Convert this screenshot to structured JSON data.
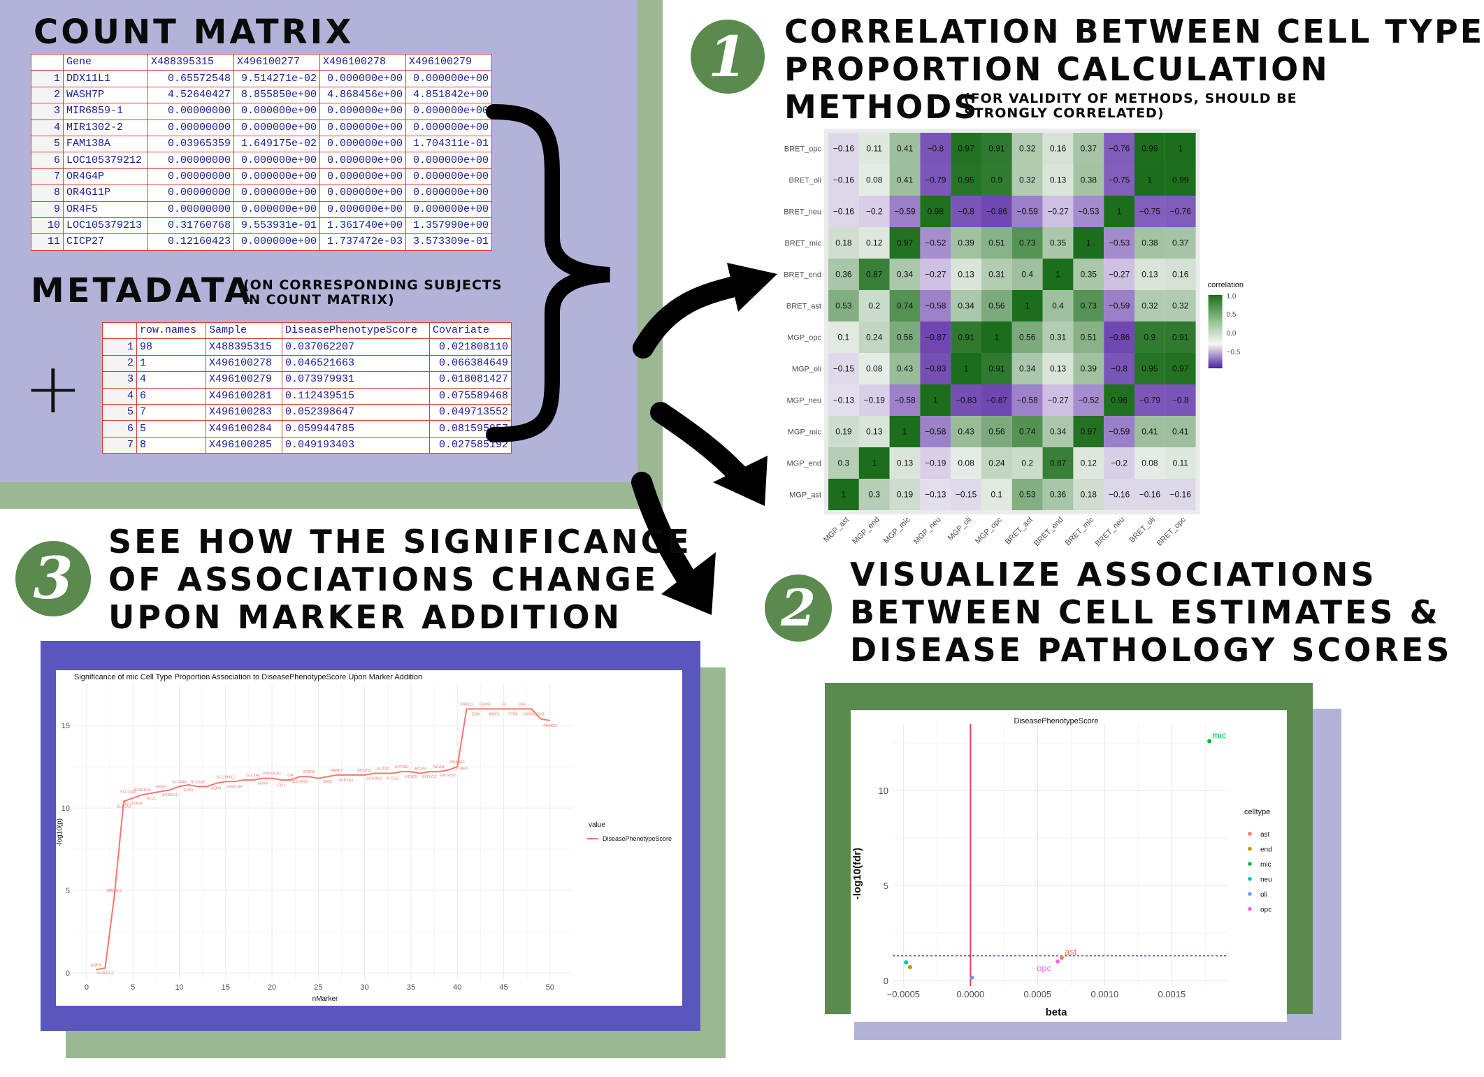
{
  "count_matrix": {
    "title": "COUNT MATRIX",
    "columns": [
      "",
      "Gene",
      "X488395315",
      "X496100277",
      "X496100278",
      "X496100279"
    ],
    "rows": [
      [
        "1",
        "DDX11L1",
        "0.65572548",
        "9.514271e-02",
        "0.000000e+00",
        "0.000000e+00"
      ],
      [
        "2",
        "WASH7P",
        "4.52640427",
        "8.855850e+00",
        "4.868456e+00",
        "4.851842e+00"
      ],
      [
        "3",
        "MIR6859-1",
        "0.00000000",
        "0.000000e+00",
        "0.000000e+00",
        "0.000000e+00"
      ],
      [
        "4",
        "MIR1302-2",
        "0.00000000",
        "0.000000e+00",
        "0.000000e+00",
        "0.000000e+00"
      ],
      [
        "5",
        "FAM138A",
        "0.03965359",
        "1.649175e-02",
        "0.000000e+00",
        "1.704311e-01"
      ],
      [
        "6",
        "LOC105379212",
        "0.00000000",
        "0.000000e+00",
        "0.000000e+00",
        "0.000000e+00"
      ],
      [
        "7",
        "OR4G4P",
        "0.00000000",
        "0.000000e+00",
        "0.000000e+00",
        "0.000000e+00"
      ],
      [
        "8",
        "OR4G11P",
        "0.00000000",
        "0.000000e+00",
        "0.000000e+00",
        "0.000000e+00"
      ],
      [
        "9",
        "OR4F5",
        "0.00000000",
        "0.000000e+00",
        "0.000000e+00",
        "0.000000e+00"
      ],
      [
        "10",
        "LOC105379213",
        "0.31760768",
        "9.553931e-01",
        "1.361740e+00",
        "1.357990e+00"
      ],
      [
        "11",
        "CICP27",
        "0.12160423",
        "0.000000e+00",
        "1.737472e-03",
        "3.573309e-01"
      ]
    ]
  },
  "metadata": {
    "title": "METADATA",
    "note": "(ON CORRESPONDING SUBJECTS IN COUNT MATRIX)",
    "plus": "+",
    "columns": [
      "",
      "row.names",
      "Sample",
      "DiseasePhenotypeScore",
      "Covariate"
    ],
    "rows": [
      [
        "1",
        "98",
        "X488395315",
        "0.037062207",
        "0.021808110"
      ],
      [
        "2",
        "1",
        "X496100278",
        "0.046521663",
        "0.066384649"
      ],
      [
        "3",
        "4",
        "X496100279",
        "0.073979931",
        "0.018081427"
      ],
      [
        "4",
        "6",
        "X496100281",
        "0.112439515",
        "0.075589468"
      ],
      [
        "5",
        "7",
        "X496100283",
        "0.052398647",
        "0.049713552"
      ],
      [
        "6",
        "5",
        "X496100284",
        "0.059944785",
        "0.081595957"
      ],
      [
        "7",
        "8",
        "X496100285",
        "0.049193403",
        "0.027585192"
      ]
    ]
  },
  "step1": {
    "number": "1",
    "title_line1": "CORRELATION BETWEEN CELL TYPE",
    "title_line2": "PROPORTION CALCULATION",
    "title_line3": "METHODS",
    "note": "(FOR VALIDITY OF METHODS, SHOULD BE STRONGLY CORRELATED)"
  },
  "step2": {
    "number": "2",
    "title_line1": "VISUALIZE ASSOCIATIONS",
    "title_line2": "BETWEEN CELL ESTIMATES &",
    "title_line3": "DISEASE PATHOLOGY SCORES"
  },
  "step3": {
    "number": "3",
    "title_line1": "SEE HOW THE SIGNIFICANCE",
    "title_line2": "OF ASSOCIATIONS CHANGE",
    "title_line3": "UPON MARKER ADDITION"
  },
  "colors": {
    "lavender": "#b3b3d9",
    "sage": "#9cb893",
    "green_box": "#5a8a4e",
    "blue_box": "#5957bd",
    "heat_high": "#1b6e1b",
    "heat_low": "#5b2ca8"
  },
  "chart_data": [
    {
      "type": "heatmap",
      "legend_title": "correlation",
      "legend_ticks": [
        "1.0",
        "0.5",
        "0.0",
        "-0.5"
      ],
      "x_labels": [
        "MGP_ast",
        "MGP_end",
        "MGP_mic",
        "MGP_neu",
        "MGP_oli",
        "MGP_opc",
        "BRET_ast",
        "BRET_end",
        "BRET_mic",
        "BRET_neu",
        "BRET_oli",
        "BRET_opc"
      ],
      "y_labels": [
        "BRET_opc",
        "BRET_oli",
        "BRET_neu",
        "BRET_mic",
        "BRET_end",
        "BRET_ast",
        "MGP_opc",
        "MGP_oli",
        "MGP_neu",
        "MGP_mic",
        "MGP_end",
        "MGP_ast"
      ],
      "values": [
        [
          -0.16,
          0.11,
          0.41,
          -0.8,
          0.97,
          0.91,
          0.32,
          0.16,
          0.37,
          -0.76,
          0.99,
          1
        ],
        [
          -0.16,
          0.08,
          0.41,
          -0.79,
          0.95,
          0.9,
          0.32,
          0.13,
          0.38,
          -0.75,
          1,
          0.99
        ],
        [
          -0.16,
          -0.2,
          -0.59,
          0.98,
          -0.8,
          -0.86,
          -0.59,
          -0.27,
          -0.53,
          1,
          -0.75,
          -0.76
        ],
        [
          0.18,
          0.12,
          0.97,
          -0.52,
          0.39,
          0.51,
          0.73,
          0.35,
          1,
          -0.53,
          0.38,
          0.37
        ],
        [
          0.36,
          0.87,
          0.34,
          -0.27,
          0.13,
          0.31,
          0.4,
          1,
          0.35,
          -0.27,
          0.13,
          0.16
        ],
        [
          0.53,
          0.2,
          0.74,
          -0.58,
          0.34,
          0.56,
          1,
          0.4,
          0.73,
          -0.59,
          0.32,
          0.32
        ],
        [
          0.1,
          0.24,
          0.56,
          -0.87,
          0.91,
          1,
          0.56,
          0.31,
          0.51,
          -0.86,
          0.9,
          0.91
        ],
        [
          -0.15,
          0.08,
          0.43,
          -0.83,
          1,
          0.91,
          0.34,
          0.13,
          0.39,
          -0.8,
          0.95,
          0.97
        ],
        [
          -0.13,
          -0.19,
          -0.58,
          1,
          -0.83,
          -0.87,
          -0.58,
          -0.27,
          -0.52,
          0.98,
          -0.79,
          -0.8
        ],
        [
          0.19,
          0.13,
          1,
          -0.58,
          0.43,
          0.56,
          0.74,
          0.34,
          0.97,
          -0.59,
          0.41,
          0.41
        ],
        [
          0.3,
          1,
          0.13,
          -0.19,
          0.08,
          0.24,
          0.2,
          0.87,
          0.12,
          -0.2,
          0.08,
          0.11
        ],
        [
          1,
          0.3,
          0.19,
          -0.13,
          -0.15,
          0.1,
          0.53,
          0.36,
          0.18,
          -0.16,
          -0.16,
          -0.16
        ]
      ]
    },
    {
      "type": "scatter",
      "title": "DiseasePhenotypeScore",
      "xlabel": "beta",
      "ylabel": "-log10(fdr)",
      "xlim": [
        -0.00058,
        0.00192
      ],
      "ylim": [
        -0.3,
        13.5
      ],
      "x_ticks": [
        "-0.0005",
        "0.0000",
        "0.0005",
        "0.0010",
        "0.0015"
      ],
      "x_tick_values": [
        -0.0005,
        0,
        0.0005,
        0.001,
        0.0015
      ],
      "y_ticks": [
        "0",
        "5",
        "10"
      ],
      "y_tick_values": [
        0,
        5,
        10
      ],
      "vline": 0,
      "hline": 1.3,
      "legend_title": "celltype",
      "points": [
        {
          "celltype": "ast",
          "x": 0.00068,
          "y": 1.2,
          "color": "#f8766d",
          "label": "ast"
        },
        {
          "celltype": "end",
          "x": -0.00045,
          "y": 0.7,
          "color": "#b79f00",
          "label": ""
        },
        {
          "celltype": "mic",
          "x": 0.00178,
          "y": 12.6,
          "color": "#00ba38",
          "label": "mic"
        },
        {
          "celltype": "neu",
          "x": -0.00048,
          "y": 0.95,
          "color": "#00bfc4",
          "label": ""
        },
        {
          "celltype": "oli",
          "x": 1e-05,
          "y": 0.15,
          "color": "#619cff",
          "label": ""
        },
        {
          "celltype": "opc",
          "x": 0.00065,
          "y": 1.0,
          "color": "#f564e3",
          "label": "opc"
        }
      ]
    },
    {
      "type": "line",
      "title": "Significance of mic Cell Type Proportion Association to DiseasePhenotypeScore Upon Marker Addition",
      "xlabel": "nMarker",
      "ylabel": "-log10(p)",
      "xlim": [
        -1.5,
        52.5
      ],
      "ylim": [
        -0.5,
        17.5
      ],
      "x_ticks": [
        "0",
        "5",
        "10",
        "15",
        "20",
        "25",
        "30",
        "35",
        "40",
        "45",
        "50"
      ],
      "x_tick_values": [
        0,
        5,
        10,
        15,
        20,
        25,
        30,
        35,
        40,
        45,
        50
      ],
      "y_ticks": [
        "0",
        "5",
        "10",
        "15"
      ],
      "y_tick_values": [
        0,
        5,
        10,
        15
      ],
      "legend_title": "value",
      "series": [
        {
          "name": "DiseasePhenotypeScore",
          "color": "#f8766d",
          "x": [
            1,
            2,
            3,
            4,
            5,
            6,
            7,
            8,
            9,
            10,
            11,
            12,
            13,
            14,
            15,
            16,
            17,
            18,
            19,
            20,
            21,
            22,
            23,
            24,
            25,
            26,
            27,
            28,
            29,
            30,
            31,
            32,
            33,
            34,
            35,
            36,
            37,
            38,
            39,
            40,
            41,
            42,
            43,
            44,
            45,
            46,
            47,
            48,
            49,
            50
          ],
          "y": [
            0.2,
            0.3,
            4.7,
            10.4,
            10.6,
            10.8,
            10.9,
            11.0,
            11.1,
            11.3,
            11.4,
            11.3,
            11.3,
            11.5,
            11.6,
            11.6,
            11.7,
            11.7,
            11.8,
            11.8,
            11.7,
            11.7,
            11.9,
            11.9,
            11.8,
            11.9,
            12.0,
            12.0,
            12.0,
            12.0,
            12.1,
            12.1,
            12.1,
            12.2,
            12.2,
            12.1,
            12.2,
            12.2,
            12.3,
            12.5,
            16.0,
            16.0,
            16.0,
            16.0,
            16.0,
            16.0,
            16.0,
            16.0,
            15.4,
            15.3
          ]
        }
      ],
      "point_labels": [
        {
          "x": 1,
          "y": 0.2,
          "text": "AQP4"
        },
        {
          "x": 2,
          "y": 0.3,
          "text": "ALDH1L1"
        },
        {
          "x": 3,
          "y": 4.7,
          "text": "MAP1K1"
        },
        {
          "x": 4,
          "y": 10.4,
          "text": "SLC1A3"
        },
        {
          "x": 4.5,
          "y": 10.7,
          "text": "SLC14A1"
        },
        {
          "x": 5,
          "y": 10.6,
          "text": "SLC25A18"
        },
        {
          "x": 6,
          "y": 10.8,
          "text": "PCDHGA"
        },
        {
          "x": 7,
          "y": 10.9,
          "text": "GLUL"
        },
        {
          "x": 8,
          "y": 11.0,
          "text": "GFAP"
        },
        {
          "x": 9,
          "y": 11.1,
          "text": "ACSBG1"
        },
        {
          "x": 10,
          "y": 11.3,
          "text": "SLC4A4"
        },
        {
          "x": 11,
          "y": 11.4,
          "text": "GJA1"
        },
        {
          "x": 12,
          "y": 11.3,
          "text": "SLC1A2"
        },
        {
          "x": 14,
          "y": 11.5,
          "text": "AQP1"
        },
        {
          "x": 15,
          "y": 11.6,
          "text": "SLC39A12"
        },
        {
          "x": 16,
          "y": 11.6,
          "text": "GRID2IP"
        },
        {
          "x": 18,
          "y": 11.7,
          "text": "SLC1A2"
        },
        {
          "x": 19,
          "y": 11.8,
          "text": "SOX9"
        },
        {
          "x": 20,
          "y": 11.8,
          "text": "PPP1R3G"
        },
        {
          "x": 21,
          "y": 11.7,
          "text": "CLU"
        },
        {
          "x": 22,
          "y": 11.7,
          "text": "ID4"
        },
        {
          "x": 23,
          "y": 11.9,
          "text": "SLC7A10"
        },
        {
          "x": 24,
          "y": 11.9,
          "text": "SPARC"
        },
        {
          "x": 26,
          "y": 11.9,
          "text": "DIO2"
        },
        {
          "x": 27,
          "y": 12.0,
          "text": "FABP7"
        },
        {
          "x": 28,
          "y": 12.0,
          "text": "ATP1A2"
        },
        {
          "x": 30,
          "y": 12.0,
          "text": "ACOT11"
        },
        {
          "x": 31,
          "y": 12.1,
          "text": "SCARA3"
        },
        {
          "x": 32,
          "y": 12.1,
          "text": "ALDOC"
        },
        {
          "x": 33,
          "y": 12.1,
          "text": "PLCG2"
        },
        {
          "x": 34,
          "y": 12.2,
          "text": "ATP1B2"
        },
        {
          "x": 35,
          "y": 12.2,
          "text": "NTSR2"
        },
        {
          "x": 36,
          "y": 12.1,
          "text": "BCAN"
        },
        {
          "x": 37,
          "y": 12.2,
          "text": "ELOVL2"
        },
        {
          "x": 38,
          "y": 12.2,
          "text": "NCAN"
        },
        {
          "x": 39,
          "y": 12.3,
          "text": "ENTPD2"
        },
        {
          "x": 40,
          "y": 12.5,
          "text": "RNASE1"
        },
        {
          "x": 40.5,
          "y": 12.7,
          "text": "LTBP4"
        },
        {
          "x": 41,
          "y": 16.0,
          "text": "PRKG1"
        },
        {
          "x": 42,
          "y": 16.0,
          "text": "DDN"
        },
        {
          "x": 43,
          "y": 16.0,
          "text": "GRM3"
        },
        {
          "x": 44,
          "y": 16.0,
          "text": "MRC1"
        },
        {
          "x": 45,
          "y": 16.0,
          "text": "F3"
        },
        {
          "x": 46,
          "y": 16.0,
          "text": "TTPA"
        },
        {
          "x": 47,
          "y": 16.0,
          "text": "CBS"
        },
        {
          "x": 48,
          "y": 16.0,
          "text": "GRIN2C"
        },
        {
          "x": 49,
          "y": 15.4,
          "text": "LIX1"
        },
        {
          "x": 50,
          "y": 15.3,
          "text": "PAMG2"
        }
      ]
    }
  ]
}
